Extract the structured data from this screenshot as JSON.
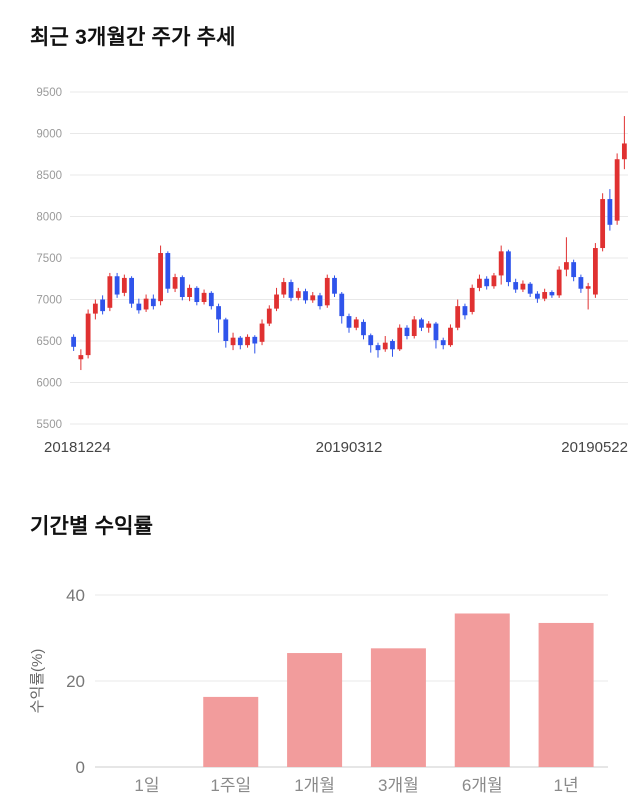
{
  "chart_data": [
    {
      "type": "candlestick",
      "title": "최근 3개월간 주가 추세",
      "ylim": [
        5500,
        9500
      ],
      "y_ticks": [
        5500,
        6000,
        6500,
        7000,
        7500,
        8000,
        8500,
        9000,
        9500
      ],
      "x_labels": [
        "20181224",
        "20190312",
        "20190522"
      ],
      "up_color": "#e03131",
      "down_color": "#2f54eb",
      "grid": true,
      "candles_format": [
        "open",
        "high",
        "low",
        "close"
      ],
      "candles": [
        [
          6550,
          6580,
          6380,
          6430
        ],
        [
          6280,
          6400,
          6150,
          6330
        ],
        [
          6330,
          6880,
          6290,
          6830
        ],
        [
          6830,
          7000,
          6760,
          6950
        ],
        [
          7000,
          7050,
          6820,
          6860
        ],
        [
          6900,
          7320,
          6860,
          7280
        ],
        [
          7280,
          7320,
          7020,
          7060
        ],
        [
          7080,
          7300,
          7040,
          7260
        ],
        [
          7260,
          7280,
          6900,
          6950
        ],
        [
          6950,
          7010,
          6830,
          6870
        ],
        [
          6880,
          7060,
          6850,
          7010
        ],
        [
          7010,
          7060,
          6880,
          6920
        ],
        [
          6980,
          7650,
          6930,
          7560
        ],
        [
          7560,
          7580,
          7080,
          7130
        ],
        [
          7130,
          7310,
          7090,
          7270
        ],
        [
          7270,
          7290,
          6990,
          7030
        ],
        [
          7030,
          7180,
          6980,
          7140
        ],
        [
          7140,
          7160,
          6930,
          6970
        ],
        [
          6970,
          7120,
          6940,
          7080
        ],
        [
          7080,
          7100,
          6880,
          6920
        ],
        [
          6920,
          6950,
          6600,
          6760
        ],
        [
          6760,
          6780,
          6420,
          6500
        ],
        [
          6450,
          6600,
          6390,
          6540
        ],
        [
          6540,
          6560,
          6400,
          6450
        ],
        [
          6450,
          6580,
          6420,
          6550
        ],
        [
          6550,
          6570,
          6350,
          6470
        ],
        [
          6490,
          6760,
          6450,
          6710
        ],
        [
          6710,
          6930,
          6680,
          6890
        ],
        [
          6890,
          7140,
          6860,
          7060
        ],
        [
          7060,
          7260,
          7020,
          7210
        ],
        [
          7210,
          7240,
          6980,
          7020
        ],
        [
          7020,
          7140,
          6990,
          7100
        ],
        [
          7100,
          7130,
          6950,
          6990
        ],
        [
          6990,
          7090,
          6960,
          7050
        ],
        [
          7050,
          7080,
          6880,
          6920
        ],
        [
          6930,
          7300,
          6900,
          7260
        ],
        [
          7260,
          7290,
          7030,
          7070
        ],
        [
          7070,
          7090,
          6710,
          6800
        ],
        [
          6800,
          6830,
          6600,
          6660
        ],
        [
          6660,
          6790,
          6630,
          6760
        ],
        [
          6730,
          6760,
          6520,
          6570
        ],
        [
          6570,
          6590,
          6360,
          6450
        ],
        [
          6450,
          6480,
          6300,
          6390
        ],
        [
          6400,
          6560,
          6370,
          6480
        ],
        [
          6500,
          6520,
          6310,
          6400
        ],
        [
          6400,
          6700,
          6380,
          6660
        ],
        [
          6660,
          6690,
          6520,
          6560
        ],
        [
          6560,
          6800,
          6530,
          6760
        ],
        [
          6760,
          6780,
          6620,
          6660
        ],
        [
          6660,
          6740,
          6600,
          6710
        ],
        [
          6710,
          6730,
          6410,
          6510
        ],
        [
          6510,
          6540,
          6400,
          6450
        ],
        [
          6450,
          6700,
          6430,
          6660
        ],
        [
          6660,
          7000,
          6630,
          6920
        ],
        [
          6920,
          6950,
          6760,
          6810
        ],
        [
          6850,
          7180,
          6820,
          7140
        ],
        [
          7140,
          7300,
          7100,
          7250
        ],
        [
          7250,
          7280,
          7120,
          7160
        ],
        [
          7160,
          7320,
          7130,
          7290
        ],
        [
          7290,
          7650,
          7180,
          7580
        ],
        [
          7580,
          7600,
          7160,
          7210
        ],
        [
          7210,
          7250,
          7080,
          7120
        ],
        [
          7120,
          7230,
          7090,
          7190
        ],
        [
          7190,
          7210,
          7030,
          7070
        ],
        [
          7070,
          7100,
          6960,
          7010
        ],
        [
          7010,
          7130,
          6980,
          7090
        ],
        [
          7090,
          7110,
          7020,
          7050
        ],
        [
          7050,
          7400,
          7020,
          7360
        ],
        [
          7360,
          7750,
          7280,
          7450
        ],
        [
          7450,
          7480,
          7220,
          7270
        ],
        [
          7270,
          7300,
          7080,
          7130
        ],
        [
          7130,
          7200,
          6880,
          7160
        ],
        [
          7060,
          7680,
          7020,
          7620
        ],
        [
          7620,
          8280,
          7580,
          8210
        ],
        [
          8210,
          8330,
          7830,
          7900
        ],
        [
          7950,
          8760,
          7900,
          8690
        ],
        [
          8690,
          9210,
          8570,
          8880
        ]
      ]
    },
    {
      "type": "bar",
      "title": "기간별 수익률",
      "ylabel": "수익률(%)",
      "categories": [
        "1일",
        "1주일",
        "1개월",
        "3개월",
        "6개월",
        "1년"
      ],
      "values": [
        0,
        16.3,
        26.5,
        27.6,
        35.7,
        33.5
      ],
      "y_ticks": [
        0,
        20,
        40
      ],
      "ylim": [
        0,
        40
      ],
      "bar_color": "#f29c9c",
      "grid": true,
      "legend": "none"
    }
  ]
}
